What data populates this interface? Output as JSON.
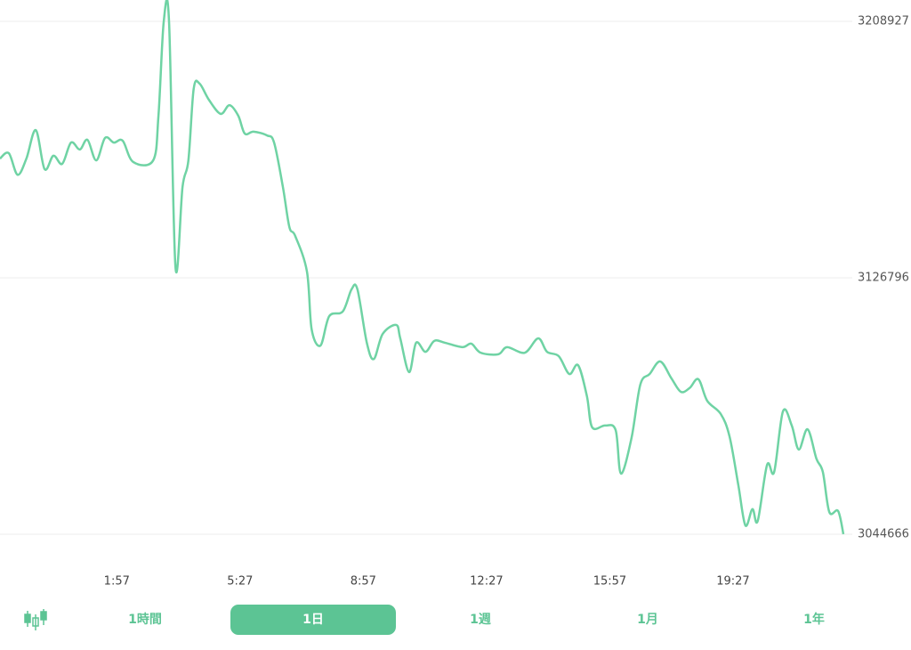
{
  "chart_data": {
    "type": "line",
    "color": "#6fd3a4",
    "grid": true,
    "xlim": [
      -82,
      1355
    ],
    "xticks": [
      {
        "value": 117,
        "label": "1:57"
      },
      {
        "value": 327,
        "label": "5:27"
      },
      {
        "value": 537,
        "label": "8:57"
      },
      {
        "value": 747,
        "label": "12:27"
      },
      {
        "value": 957,
        "label": "15:57"
      },
      {
        "value": 1167,
        "label": "19:27"
      }
    ],
    "ylim": [
      3044666,
      3208927
    ],
    "yticks": [
      3044666,
      3126796,
      3208927
    ],
    "x": [
      -82,
      -67,
      -52,
      -37,
      -21,
      -6,
      9,
      24,
      39,
      54,
      67,
      82,
      97,
      112,
      127,
      145,
      179,
      188,
      197,
      206,
      217,
      229,
      239,
      248,
      258,
      274,
      294,
      309,
      324,
      335,
      350,
      373,
      385,
      400,
      411,
      421,
      441,
      449,
      464,
      479,
      502,
      517,
      527,
      543,
      555,
      570,
      593,
      600,
      615,
      627,
      643,
      658,
      676,
      706,
      721,
      737,
      767,
      782,
      812,
      835,
      850,
      870,
      888,
      903,
      918,
      927,
      949,
      967,
      976,
      994,
      1009,
      1025,
      1043,
      1062,
      1078,
      1093,
      1108,
      1123,
      1146,
      1161,
      1176,
      1188,
      1200,
      1209,
      1225,
      1237,
      1252,
      1267,
      1279,
      1294,
      1309,
      1320,
      1331,
      1346,
      1355
    ],
    "values": [
      3165000,
      3166700,
      3159800,
      3165000,
      3174100,
      3161600,
      3165900,
      3163300,
      3170100,
      3167900,
      3171000,
      3164400,
      3171600,
      3170100,
      3170700,
      3163900,
      3164400,
      3178700,
      3208900,
      3208900,
      3130200,
      3155900,
      3164400,
      3187300,
      3189000,
      3183800,
      3179300,
      3182100,
      3178700,
      3173000,
      3173600,
      3172400,
      3170100,
      3155900,
      3143100,
      3140200,
      3128800,
      3110300,
      3105100,
      3114500,
      3116000,
      3123100,
      3123100,
      3106000,
      3100800,
      3108800,
      3111700,
      3107400,
      3096600,
      3106000,
      3103100,
      3106600,
      3106000,
      3104600,
      3105700,
      3102800,
      3102300,
      3104600,
      3102800,
      3107400,
      3103100,
      3101700,
      3096000,
      3098800,
      3088900,
      3078900,
      3079500,
      3078000,
      3064100,
      3075500,
      3092600,
      3096000,
      3100000,
      3094600,
      3090300,
      3091500,
      3094300,
      3087400,
      3083200,
      3076000,
      3060400,
      3047500,
      3052700,
      3048900,
      3066900,
      3064600,
      3084000,
      3079500,
      3071800,
      3078300,
      3068900,
      3064600,
      3051800,
      3052100,
      3044700
    ]
  },
  "tabs": {
    "items": [
      "1時間",
      "1日",
      "1週",
      "1月",
      "1年"
    ],
    "selected": 1
  }
}
